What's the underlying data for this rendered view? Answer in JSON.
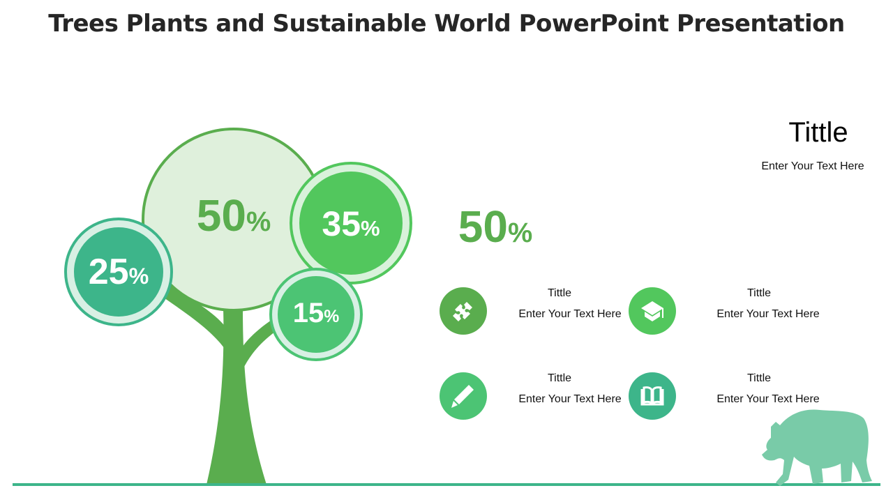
{
  "title": "Trees Plants and Sustainable World PowerPoint Presentation",
  "colors": {
    "dark_green": "#5aad4e",
    "green": "#52c75d",
    "mid_green": "#4cc474",
    "teal": "#3db58a",
    "pale": "#dff0dc",
    "bear": "#79cba8",
    "ground": "#3db58a"
  },
  "tree": {
    "big": {
      "value": "50",
      "unit": "%"
    },
    "left": {
      "value": "25",
      "unit": "%"
    },
    "right": {
      "value": "35",
      "unit": "%"
    },
    "small": {
      "value": "15",
      "unit": "%"
    }
  },
  "highlight": {
    "value": "50",
    "unit": "%"
  },
  "top_right": {
    "title": "Tittle",
    "text": "Enter Your Text Here"
  },
  "items": [
    {
      "icon": "puzzle-icon",
      "title": "Tittle",
      "text": "Enter Your Text Here"
    },
    {
      "icon": "graduation-cap-icon",
      "title": "Tittle",
      "text": "Enter Your Text Here"
    },
    {
      "icon": "pencil-icon",
      "title": "Tittle",
      "text": "Enter Your Text Here"
    },
    {
      "icon": "book-icon",
      "title": "Tittle",
      "text": "Enter Your Text Here"
    }
  ]
}
